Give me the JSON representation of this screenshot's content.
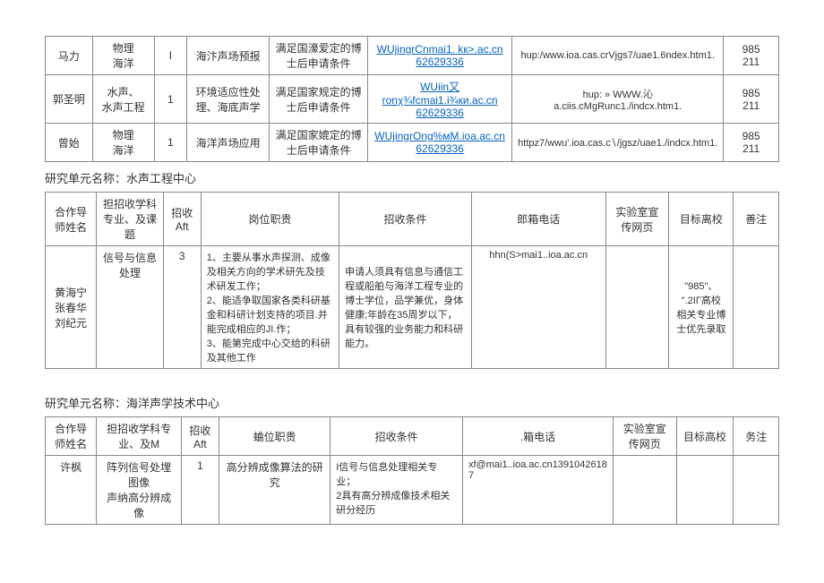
{
  "table1": {
    "rows": [
      {
        "name": "马力",
        "major": "物理\n海洋",
        "num": "I",
        "duty": "海汴声场预报",
        "cond": "满足国濠爱定的博士后申请条件",
        "email": "WUjingrCnmai1. kк>.ac.cn\n62629336",
        "url": "hup:/www.ioa.cas.crVjgs7/uae1.6ndex.htm1.",
        "goal": "985\n211"
      },
      {
        "name": "郭圣明",
        "major": "水声、\n水声工程",
        "num": "1",
        "duty": "环境适应性处理、海底声学",
        "cond": "满足国家规定的博士后申请条件",
        "email": "WUiin又ronχ¾fcmai1.i¾ки.ac.cn\n62629336",
        "url": "hup: » WWW.沁\na.ciis.cMgRunc1./indcx.htm1.",
        "goal": "985\n211"
      },
      {
        "name": "曾始",
        "major": "物理\n海洋",
        "num": "1",
        "duty": "海洋声场应用",
        "cond": "满足国家媲定的博士后申请条件",
        "email": "WUjingrOng%мM.ioa.ac.cn\n62629336",
        "url": "httpz7/wwu'.ioa.cas.c∖/jgsz/uae1./indcx.htm1.",
        "goal": "985\n211"
      }
    ]
  },
  "section2_title": "研究单元名称：水声工程中心",
  "table2": {
    "headers": {
      "h1": "合作导师姓名",
      "h2": "担招收学科专业、及课题",
      "h3": "招收\nAft",
      "h4": "岗位职贵",
      "h5": "招收条件",
      "h6": "郎箱电话",
      "h7": "实验室宣传网页",
      "h8": "目标离校",
      "h9": "善注"
    },
    "row": {
      "name": "黄海宁\n张春华\n刘纪元",
      "major": "信号与信息处理",
      "num": "3",
      "duty": "1、主要从事水声探测、成像及相关方向的学术研先及技术研发工作；\n2、能适争取国家各类科研基金和科研计划支持的项目.并能完成相应的JI.作；\n3、能第完成中心交给的科研及其他工作",
      "cond": "申请人须具有信息与通信工程或船舶与海洋工程专业的博士学位，品学兼优，身体健康;年龄在35周岁以下，具有较强的业务能力和科研能力。",
      "email": "hhn(S>mai1..ioa.ac.cn",
      "lab": "",
      "goal": "\"985\"、\n\".2ΙΓ高校\n相关专业博士优先录取",
      "note": ""
    }
  },
  "section3_title": "研究单元名称：海洋声学技术中心",
  "table3": {
    "headers": {
      "h1": "合作导师姓名",
      "h2": "担招收学科专业、及M",
      "h3": "招收\nAft",
      "h4": "蛐位职贵",
      "h5": "招收条件",
      "h6": ".箱电话",
      "h7": "实验室宣传网页",
      "h8": "目标高校",
      "h9": "务注"
    },
    "row": {
      "name": "许枫",
      "major": "阵列信号处埋图像\n声纳高分辨成像",
      "num": "1",
      "duty": "高分辨成像算法的研究",
      "cond": "I信号与信息处理相关专业；\n2具有高分辨成像技术相关研分经历",
      "email": "xf@mai1..ioa.ac.cn1391042618\n7",
      "lab": "",
      "goal": "",
      "note": ""
    }
  }
}
